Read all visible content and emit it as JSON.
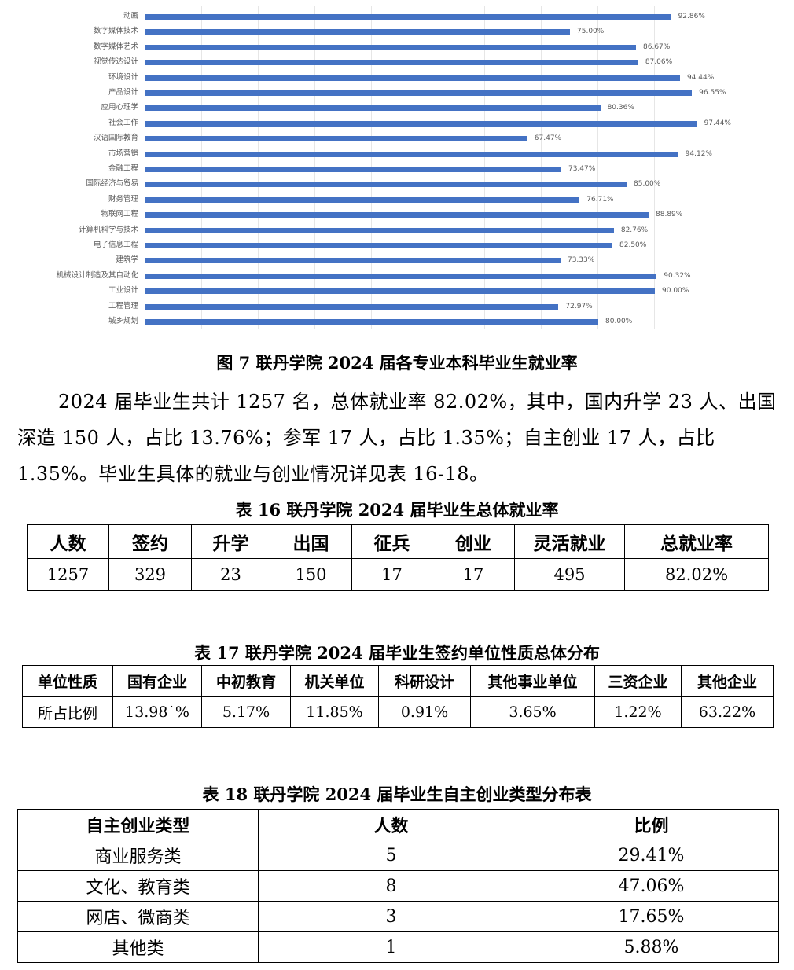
{
  "chart_data": {
    "type": "bar",
    "orientation": "horizontal",
    "title": "图 7  联丹学院 2024 届各专业本科毕业生就业率",
    "xlabel": "",
    "ylabel": "",
    "xlim": [
      0,
      100
    ],
    "grid": true,
    "legend": null,
    "bar_color": "#4472c4",
    "value_suffix": "%",
    "categories": [
      "动画",
      "数字媒体技术",
      "数字媒体艺术",
      "视觉传达设计",
      "环境设计",
      "产品设计",
      "应用心理学",
      "社会工作",
      "汉语国际教育",
      "市场营销",
      "金融工程",
      "国际经济与贸易",
      "财务管理",
      "物联网工程",
      "计算机科学与技术",
      "电子信息工程",
      "建筑学",
      "机械设计制造及其自动化",
      "工业设计",
      "工程管理",
      "城乡规划"
    ],
    "values": [
      92.86,
      75.0,
      86.67,
      87.06,
      94.44,
      96.55,
      80.36,
      97.44,
      67.47,
      94.12,
      73.47,
      85.0,
      76.71,
      88.89,
      82.76,
      82.5,
      73.33,
      90.32,
      90.0,
      72.97,
      80.0
    ],
    "value_labels": [
      "92.86%",
      "75.00%",
      "86.67%",
      "87.06%",
      "94.44%",
      "96.55%",
      "80.36%",
      "97.44%",
      "67.47%",
      "94.12%",
      "73.47%",
      "85.00%",
      "76.71%",
      "88.89%",
      "82.76%",
      "82.50%",
      "73.33%",
      "90.32%",
      "90.00%",
      "72.97%",
      "80.00%"
    ]
  },
  "figure": {
    "caption": "图 7  联丹学院 2024 届各专业本科毕业生就业率"
  },
  "paragraph": {
    "text": "2024 届毕业生共计 1257 名，总体就业率 82.02%，其中，国内升学 23 人、出国深造 150 人，占比 13.76%；参军 17 人，占比 1.35%；自主创业 17 人，占比 1.35%。毕业生具体的就业与创业情况详见表 16-18。"
  },
  "table16": {
    "caption": "表 16  联丹学院 2024 届毕业生总体就业率",
    "headers": [
      "人数",
      "签约",
      "升学",
      "出国",
      "征兵",
      "创业",
      "灵活就业",
      "总就业率"
    ],
    "row": [
      "1257",
      "329",
      "23",
      "150",
      "17",
      "17",
      "495",
      "82.02%"
    ]
  },
  "table17": {
    "caption": "表 17  联丹学院 2024 届毕业生签约单位性质总体分布",
    "headers": [
      "单位性质",
      "国有企业",
      "中初教育",
      "机关单位",
      "科研设计",
      "其他事业单位",
      "三资企业",
      "其他企业"
    ],
    "row": [
      "所占比例",
      "13.98˙%",
      "5.17%",
      "11.85%",
      "0.91%",
      "3.65%",
      "1.22%",
      "63.22%"
    ]
  },
  "table18": {
    "caption": "表 18  联丹学院 2024 届毕业生自主创业类型分布表",
    "headers": [
      "自主创业类型",
      "人数",
      "比例"
    ],
    "rows": [
      [
        "商业服务类",
        "5",
        "29.41%"
      ],
      [
        "文化、教育类",
        "8",
        "47.06%"
      ],
      [
        "网店、微商类",
        "3",
        "17.65%"
      ],
      [
        "其他类",
        "1",
        "5.88%"
      ]
    ]
  }
}
